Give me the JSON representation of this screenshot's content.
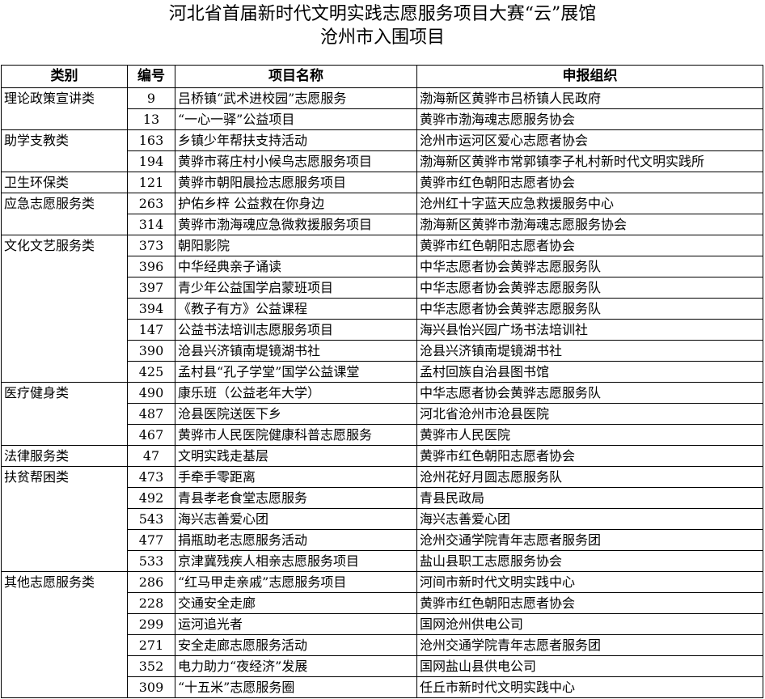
{
  "header": {
    "title": "河北省首届新时代文明实践志愿服务项目大赛“云”展馆",
    "subtitle": "沧州市入围项目"
  },
  "table": {
    "columns": [
      "类别",
      "编号",
      "项目名称",
      "申报组织"
    ],
    "rows": [
      [
        "理论政策宣讲类",
        9,
        "吕桥镇“武术进校园”志愿服务",
        "渤海新区黄骅市吕桥镇人民政府"
      ],
      [
        null,
        13,
        "“一心一驿”公益项目",
        "黄骅市渤海魂志愿服务协会"
      ],
      [
        "助学支教类",
        163,
        "乡镇少年帮扶支持活动",
        "沧州市运河区爱心志愿者协会"
      ],
      [
        null,
        194,
        "黄骅市蒋庄村小候鸟志愿服务项目",
        "渤海新区黄骅市常郭镇李子札村新时代文明实践所"
      ],
      [
        "卫生环保类",
        121,
        "黄骅市朝阳晨捡志愿服务项目",
        "黄骅市红色朝阳志愿者协会"
      ],
      [
        "应急志愿服务类",
        263,
        "护佑乡梓 公益救在你身边",
        "沧州红十字蓝天应急救援服务中心"
      ],
      [
        null,
        314,
        "黄骅市渤海魂应急微救援服务项目",
        "渤海新区黄骅市渤海魂志愿服务协会"
      ],
      [
        "文化文艺服务类",
        373,
        "朝阳影院",
        "黄骅市红色朝阳志愿者协会"
      ],
      [
        null,
        396,
        "中华经典亲子诵读",
        "中华志愿者协会黄骅志愿服务队"
      ],
      [
        null,
        397,
        "青少年公益国学启蒙班项目",
        "中华志愿者协会黄骅志愿服务队"
      ],
      [
        null,
        394,
        "《教子有方》公益课程",
        "中华志愿者协会黄骅志愿服务队"
      ],
      [
        null,
        147,
        "公益书法培训志愿服务项目",
        "海兴县怡兴园广场书法培训社"
      ],
      [
        null,
        390,
        "沧县兴济镇南堤镜湖书社",
        "沧县兴济镇南堤镜湖书社"
      ],
      [
        null,
        425,
        "孟村县“孔子学堂”国学公益课堂",
        "孟村回族自治县图书馆"
      ],
      [
        "医疗健身类",
        490,
        "康乐班（公益老年大学）",
        "中华志愿者协会黄骅志愿服务队"
      ],
      [
        null,
        487,
        "沧县医院送医下乡",
        "河北省沧州市沧县医院"
      ],
      [
        null,
        467,
        "黄骅市人民医院健康科普志愿服务",
        "黄骅市人民医院"
      ],
      [
        "法律服务类",
        47,
        "文明实践走基层",
        "黄骅市红色朝阳志愿者协会"
      ],
      [
        "扶贫帮困类",
        473,
        "手牵手零距离",
        "沧州花好月圆志愿服务队"
      ],
      [
        null,
        492,
        "青县孝老食堂志愿服务",
        "青县民政局"
      ],
      [
        null,
        543,
        "海兴志善爱心团",
        "海兴志善爱心团"
      ],
      [
        null,
        477,
        "捐瓶助老志愿服务活动",
        "沧州交通学院青年志愿者服务团"
      ],
      [
        null,
        533,
        "京津冀残疾人相亲志愿服务项目",
        "盐山县职工志愿服务协会"
      ],
      [
        "其他志愿服务类",
        286,
        "“红马甲走亲戚”志愿服务项目",
        "河间市新时代文明实践中心"
      ],
      [
        null,
        228,
        "交通安全走廊",
        "黄骅市红色朝阳志愿者协会"
      ],
      [
        null,
        299,
        "运河追光者",
        "国网沧州供电公司"
      ],
      [
        null,
        271,
        "安全走廊志愿服务活动",
        "沧州交通学院青年志愿者服务团"
      ],
      [
        null,
        352,
        "电力助力“夜经济”发展",
        "国网盐山县供电公司"
      ],
      [
        null,
        309,
        "“十五米”志愿服务圈",
        "任丘市新时代文明实践中心"
      ]
    ]
  }
}
